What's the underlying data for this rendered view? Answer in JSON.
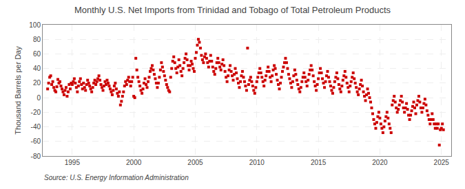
{
  "chart_data": {
    "type": "scatter",
    "title": "Monthly U.S. Net Imports from Trinidad and Tobago of Total Petroleum Products",
    "y_label": "Thousand Barrels per Day",
    "annotations": [
      "Source: U.S. Energy Information Administration"
    ],
    "color": "#CC0000",
    "marker": "square",
    "grid": true,
    "xlim": [
      1992.6,
      2025.8
    ],
    "xticks": [
      1995,
      2000,
      2005,
      2010,
      2015,
      2020,
      2025
    ],
    "ylim": [
      -80,
      100
    ],
    "yticks": [
      -80,
      -60,
      -40,
      -20,
      0,
      20,
      40,
      60,
      80,
      100
    ],
    "x": [
      1993.0,
      1993.083,
      1993.167,
      1993.25,
      1993.333,
      1993.417,
      1993.5,
      1993.583,
      1993.667,
      1993.75,
      1993.833,
      1993.917,
      1994.0,
      1994.083,
      1994.167,
      1994.25,
      1994.333,
      1994.417,
      1994.5,
      1994.583,
      1994.667,
      1994.75,
      1994.833,
      1994.917,
      1995.0,
      1995.083,
      1995.167,
      1995.25,
      1995.333,
      1995.417,
      1995.5,
      1995.583,
      1995.667,
      1995.75,
      1995.833,
      1995.917,
      1996.0,
      1996.083,
      1996.167,
      1996.25,
      1996.333,
      1996.417,
      1996.5,
      1996.583,
      1996.667,
      1996.75,
      1996.833,
      1996.917,
      1997.0,
      1997.083,
      1997.167,
      1997.25,
      1997.333,
      1997.417,
      1997.5,
      1997.583,
      1997.667,
      1997.75,
      1997.833,
      1997.917,
      1998.0,
      1998.083,
      1998.167,
      1998.25,
      1998.333,
      1998.417,
      1998.5,
      1998.583,
      1998.667,
      1998.75,
      1998.833,
      1998.917,
      1999.0,
      1999.083,
      1999.167,
      1999.25,
      1999.333,
      1999.417,
      1999.5,
      1999.583,
      1999.667,
      1999.75,
      1999.833,
      1999.917,
      2000.0,
      2000.083,
      2000.167,
      2000.25,
      2000.333,
      2000.417,
      2000.5,
      2000.583,
      2000.667,
      2000.75,
      2000.833,
      2000.917,
      2001.0,
      2001.083,
      2001.167,
      2001.25,
      2001.333,
      2001.417,
      2001.5,
      2001.583,
      2001.667,
      2001.75,
      2001.833,
      2001.917,
      2002.0,
      2002.083,
      2002.167,
      2002.25,
      2002.333,
      2002.417,
      2002.5,
      2002.583,
      2002.667,
      2002.75,
      2002.833,
      2002.917,
      2003.0,
      2003.083,
      2003.167,
      2003.25,
      2003.333,
      2003.417,
      2003.5,
      2003.583,
      2003.667,
      2003.75,
      2003.833,
      2003.917,
      2004.0,
      2004.083,
      2004.167,
      2004.25,
      2004.333,
      2004.417,
      2004.5,
      2004.583,
      2004.667,
      2004.75,
      2004.833,
      2004.917,
      2005.0,
      2005.083,
      2005.167,
      2005.25,
      2005.333,
      2005.417,
      2005.5,
      2005.583,
      2005.667,
      2005.75,
      2005.833,
      2005.917,
      2006.0,
      2006.083,
      2006.167,
      2006.25,
      2006.333,
      2006.417,
      2006.5,
      2006.583,
      2006.667,
      2006.75,
      2006.833,
      2006.917,
      2007.0,
      2007.083,
      2007.167,
      2007.25,
      2007.333,
      2007.417,
      2007.5,
      2007.583,
      2007.667,
      2007.75,
      2007.833,
      2007.917,
      2008.0,
      2008.083,
      2008.167,
      2008.25,
      2008.333,
      2008.417,
      2008.5,
      2008.583,
      2008.667,
      2008.75,
      2008.833,
      2008.917,
      2009.0,
      2009.083,
      2009.167,
      2009.25,
      2009.333,
      2009.417,
      2009.5,
      2009.583,
      2009.667,
      2009.75,
      2009.833,
      2009.917,
      2010.0,
      2010.083,
      2010.167,
      2010.25,
      2010.333,
      2010.417,
      2010.5,
      2010.583,
      2010.667,
      2010.75,
      2010.833,
      2010.917,
      2011.0,
      2011.083,
      2011.167,
      2011.25,
      2011.333,
      2011.417,
      2011.5,
      2011.583,
      2011.667,
      2011.75,
      2011.833,
      2011.917,
      2012.0,
      2012.083,
      2012.167,
      2012.25,
      2012.333,
      2012.417,
      2012.5,
      2012.583,
      2012.667,
      2012.75,
      2012.833,
      2012.917,
      2013.0,
      2013.083,
      2013.167,
      2013.25,
      2013.333,
      2013.417,
      2013.5,
      2013.583,
      2013.667,
      2013.75,
      2013.833,
      2013.917,
      2014.0,
      2014.083,
      2014.167,
      2014.25,
      2014.333,
      2014.417,
      2014.5,
      2014.583,
      2014.667,
      2014.75,
      2014.833,
      2014.917,
      2015.0,
      2015.083,
      2015.167,
      2015.25,
      2015.333,
      2015.417,
      2015.5,
      2015.583,
      2015.667,
      2015.75,
      2015.833,
      2015.917,
      2016.0,
      2016.083,
      2016.167,
      2016.25,
      2016.333,
      2016.417,
      2016.5,
      2016.583,
      2016.667,
      2016.75,
      2016.833,
      2016.917,
      2017.0,
      2017.083,
      2017.167,
      2017.25,
      2017.333,
      2017.417,
      2017.5,
      2017.583,
      2017.667,
      2017.75,
      2017.833,
      2017.917,
      2018.0,
      2018.083,
      2018.167,
      2018.25,
      2018.333,
      2018.417,
      2018.5,
      2018.583,
      2018.667,
      2018.75,
      2018.833,
      2018.917,
      2019.0,
      2019.083,
      2019.167,
      2019.25,
      2019.333,
      2019.417,
      2019.5,
      2019.583,
      2019.667,
      2019.75,
      2019.833,
      2019.917,
      2020.0,
      2020.083,
      2020.167,
      2020.25,
      2020.333,
      2020.417,
      2020.5,
      2020.583,
      2020.667,
      2020.75,
      2020.833,
      2020.917,
      2021.0,
      2021.083,
      2021.167,
      2021.25,
      2021.333,
      2021.417,
      2021.5,
      2021.583,
      2021.667,
      2021.75,
      2021.833,
      2021.917,
      2022.0,
      2022.083,
      2022.167,
      2022.25,
      2022.333,
      2022.417,
      2022.5,
      2022.583,
      2022.667,
      2022.75,
      2022.833,
      2022.917,
      2023.0,
      2023.083,
      2023.167,
      2023.25,
      2023.333,
      2023.417,
      2023.5,
      2023.583,
      2023.667,
      2023.75,
      2023.833,
      2023.917,
      2024.0,
      2024.083,
      2024.167,
      2024.25,
      2024.333,
      2024.417,
      2024.5,
      2024.583,
      2024.667,
      2024.75,
      2024.833,
      2024.917,
      2025.0,
      2025.083,
      2025.167
    ],
    "values": [
      12,
      20,
      28,
      30,
      18,
      22,
      14,
      10,
      8,
      15,
      25,
      20,
      22,
      16,
      12,
      8,
      4,
      10,
      14,
      2,
      8,
      18,
      12,
      20,
      18,
      22,
      26,
      20,
      14,
      8,
      16,
      22,
      26,
      18,
      12,
      20,
      14,
      10,
      18,
      24,
      20,
      16,
      12,
      8,
      14,
      20,
      24,
      18,
      22,
      26,
      30,
      24,
      18,
      14,
      10,
      16,
      22,
      18,
      24,
      20,
      16,
      12,
      8,
      4,
      10,
      16,
      20,
      12,
      6,
      2,
      8,
      -10,
      -5,
      2,
      8,
      16,
      22,
      18,
      24,
      28,
      22,
      16,
      22,
      28,
      2,
      0,
      54,
      38,
      28,
      22,
      16,
      10,
      6,
      12,
      20,
      26,
      18,
      14,
      22,
      28,
      36,
      40,
      44,
      38,
      32,
      26,
      20,
      14,
      20,
      28,
      38,
      48,
      42,
      36,
      30,
      24,
      18,
      14,
      10,
      8,
      28,
      40,
      50,
      56,
      48,
      40,
      34,
      42,
      52,
      44,
      36,
      30,
      40,
      48,
      54,
      60,
      52,
      44,
      38,
      44,
      50,
      46,
      40,
      36,
      54,
      62,
      72,
      80,
      76,
      68,
      58,
      52,
      48,
      56,
      60,
      54,
      48,
      42,
      50,
      58,
      50,
      42,
      36,
      32,
      40,
      48,
      54,
      48,
      42,
      38,
      46,
      52,
      44,
      36,
      28,
      22,
      30,
      38,
      44,
      36,
      30,
      24,
      32,
      40,
      34,
      26,
      20,
      14,
      22,
      30,
      36,
      28,
      22,
      16,
      10,
      68,
      18,
      24,
      28,
      22,
      16,
      10,
      6,
      14,
      22,
      28,
      34,
      40,
      34,
      28,
      22,
      16,
      24,
      30,
      36,
      42,
      36,
      28,
      22,
      30,
      38,
      44,
      40,
      32,
      24,
      18,
      12,
      20,
      28,
      36,
      42,
      48,
      54,
      48,
      40,
      32,
      26,
      20,
      14,
      22,
      30,
      38,
      32,
      24,
      18,
      12,
      8,
      14,
      22,
      28,
      34,
      28,
      22,
      16,
      24,
      32,
      38,
      44,
      38,
      30,
      22,
      16,
      10,
      18,
      26,
      34,
      40,
      34,
      26,
      20,
      14,
      22,
      30,
      36,
      28,
      22,
      16,
      10,
      6,
      14,
      22,
      28,
      34,
      26,
      18,
      12,
      8,
      16,
      24,
      30,
      36,
      28,
      20,
      14,
      8,
      16,
      22,
      28,
      34,
      26,
      20,
      14,
      8,
      4,
      12,
      18,
      24,
      16,
      8,
      2,
      -4,
      4,
      12,
      6,
      0,
      -6,
      -14,
      -22,
      -30,
      -36,
      -42,
      -34,
      -26,
      -20,
      -28,
      -36,
      -42,
      -48,
      -40,
      -32,
      -26,
      -20,
      -28,
      -36,
      -42,
      -48,
      -10,
      -4,
      2,
      -6,
      -14,
      -20,
      -16,
      -10,
      -4,
      2,
      -6,
      -14,
      -20,
      -14,
      -8,
      -16,
      -24,
      -30,
      -24,
      -18,
      -12,
      -6,
      -14,
      -22,
      -10,
      -4,
      2,
      -6,
      -14,
      -20,
      -14,
      -8,
      -2,
      -10,
      -18,
      -24,
      -30,
      -36,
      -30,
      -22,
      -30,
      -36,
      -42,
      -36,
      -42,
      -36,
      -65,
      -44,
      -42,
      -36,
      -44
    ]
  }
}
